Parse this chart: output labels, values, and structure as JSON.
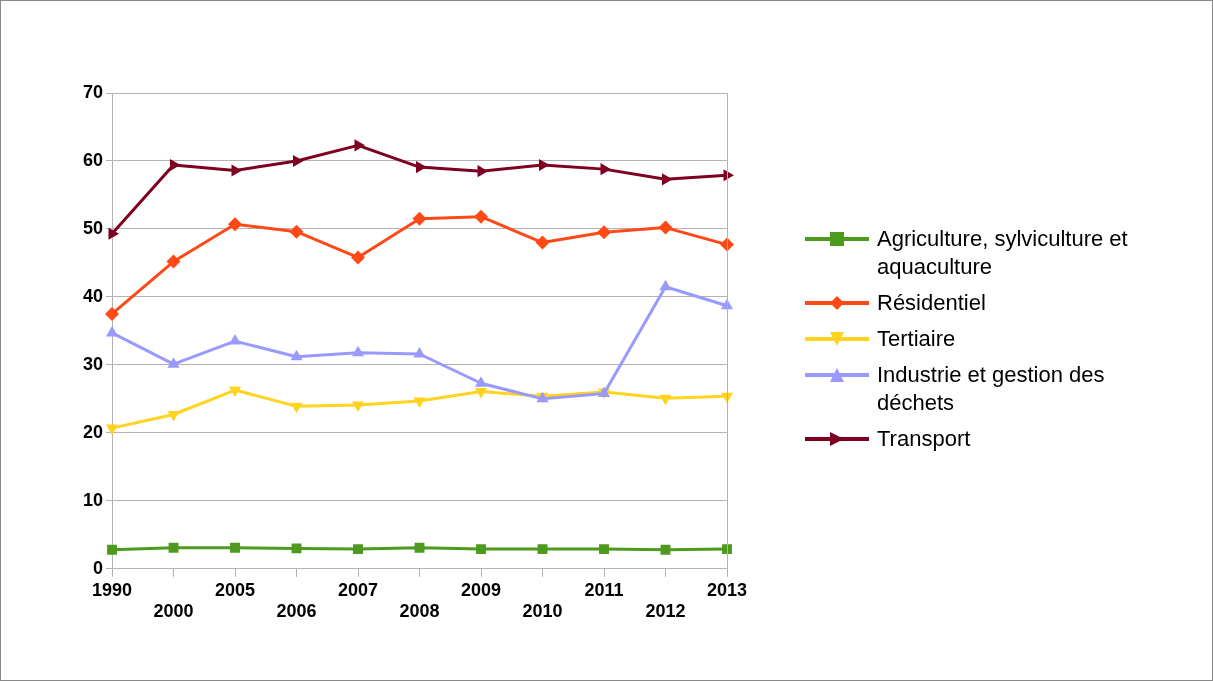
{
  "chart_data": {
    "type": "line",
    "categories": [
      "1990",
      "2000",
      "2005",
      "2006",
      "2007",
      "2008",
      "2009",
      "2010",
      "2011",
      "2012",
      "2013"
    ],
    "series": [
      {
        "name": "Agriculture, sylviculture et aquaculture",
        "color": "#4e9a1f",
        "marker": "square",
        "values": [
          2.8,
          3.1,
          3.1,
          3.0,
          2.9,
          3.1,
          2.9,
          2.9,
          2.9,
          2.8,
          2.9
        ]
      },
      {
        "name": "Résidentiel",
        "color": "#ff4a17",
        "marker": "diamond",
        "values": [
          37.5,
          45.2,
          50.7,
          49.6,
          45.8,
          51.5,
          51.8,
          48.0,
          49.5,
          50.2,
          47.7
        ]
      },
      {
        "name": "Tertiaire",
        "color": "#ffd320",
        "marker": "triangle-down",
        "values": [
          20.7,
          22.7,
          26.3,
          23.9,
          24.1,
          24.7,
          26.1,
          25.4,
          26.0,
          25.1,
          25.4
        ]
      },
      {
        "name": "Industrie et gestion des déchets",
        "color": "#9999ff",
        "marker": "triangle",
        "values": [
          34.7,
          30.1,
          33.5,
          31.2,
          31.8,
          31.6,
          27.3,
          25.0,
          25.8,
          41.5,
          38.7
        ]
      },
      {
        "name": "Transport",
        "color": "#7e0021",
        "marker": "triangle-right",
        "values": [
          49.3,
          59.4,
          58.6,
          60.0,
          62.3,
          59.1,
          58.5,
          59.4,
          58.8,
          57.3,
          57.9
        ]
      }
    ],
    "ylim": [
      0,
      70
    ],
    "yticks": [
      0,
      10,
      20,
      30,
      40,
      50,
      60,
      70
    ],
    "grid": "y",
    "legend": "right"
  }
}
